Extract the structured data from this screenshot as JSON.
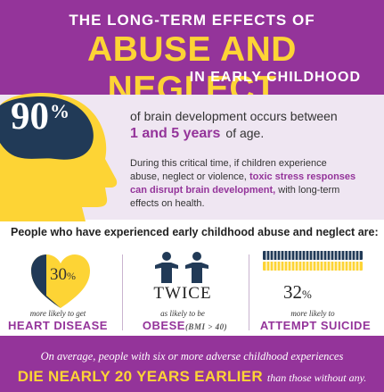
{
  "header": {
    "pre_title": "THE LONG-TERM EFFECTS OF",
    "title": "ABUSE AND NEGLECT",
    "post_title": "IN EARLY CHILDHOOD"
  },
  "intro": {
    "stat_value": "90",
    "stat_unit": "%",
    "line1": "of brain development occurs between",
    "years_highlight": "1 and 5 years",
    "line2_rest": "of age.",
    "para_line1": "During this critical time, if children experience",
    "para_line2_plain": "abuse, neglect or violence,",
    "para_line2_highlight": "toxic stress responses",
    "para_line3_highlight": "can disrupt brain development,",
    "para_line3_plain": "with long-term",
    "para_line4": "effects on health."
  },
  "stats": {
    "heading": "People who have experienced early childhood abuse and neglect are:",
    "heart": {
      "value": "30",
      "unit": "%",
      "label": "more likely to get",
      "outcome": "HEART DISEASE",
      "share": 0.3
    },
    "obese": {
      "value": "TWICE",
      "label": "as likely to be",
      "outcome": "OBESE",
      "note": "(BMI > 40)"
    },
    "suicide": {
      "value": "32",
      "unit": "%",
      "label": "more likely to",
      "outcome": "ATTEMPT SUICIDE",
      "share": 0.32
    }
  },
  "footer": {
    "line1": "On average, people with six or more adverse childhood experiences",
    "highlight": "DIE NEARLY 20 YEARS EARLIER",
    "tail": "than those without any."
  },
  "colors": {
    "purple": "#94349a",
    "yellow": "#fdd435",
    "navy": "#213a57",
    "lavender": "#efe6f2"
  },
  "icons": {
    "head": "head-silhouette-with-brain-icon",
    "heart": "partially-filled-heart-icon",
    "people": "two-people-icon",
    "grid": "people-grid-icon"
  }
}
